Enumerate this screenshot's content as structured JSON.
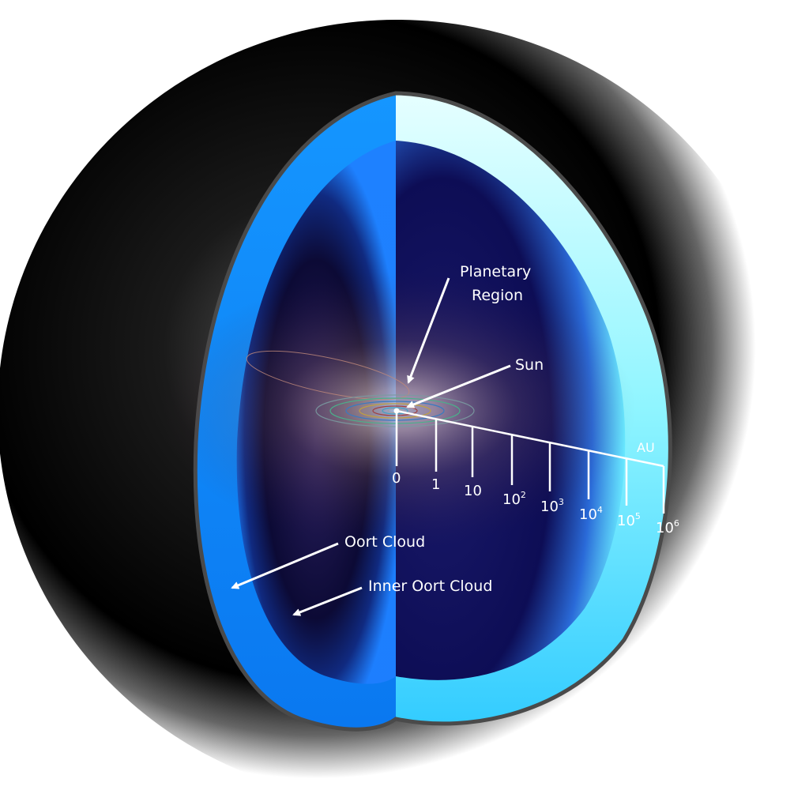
{
  "labels": {
    "planetary": [
      "Planetary",
      "Region"
    ],
    "sun": "Sun",
    "oort_cloud": "Oort Cloud",
    "inner_oort_cloud": "Inner Oort Cloud",
    "unit": "AU"
  },
  "scale": {
    "unit": "AU",
    "ticks": [
      {
        "base": "0",
        "exp": ""
      },
      {
        "base": "1",
        "exp": ""
      },
      {
        "base": "10",
        "exp": ""
      },
      {
        "base": "10",
        "exp": "2"
      },
      {
        "base": "10",
        "exp": "3"
      },
      {
        "base": "10",
        "exp": "4"
      },
      {
        "base": "10",
        "exp": "5"
      },
      {
        "base": "10",
        "exp": "6"
      }
    ]
  },
  "colors": {
    "outer_shell_left": "#1a8cff",
    "outer_shell_right": "#66f2ff",
    "interior_dark": "#14103a",
    "halo": "#000000"
  }
}
